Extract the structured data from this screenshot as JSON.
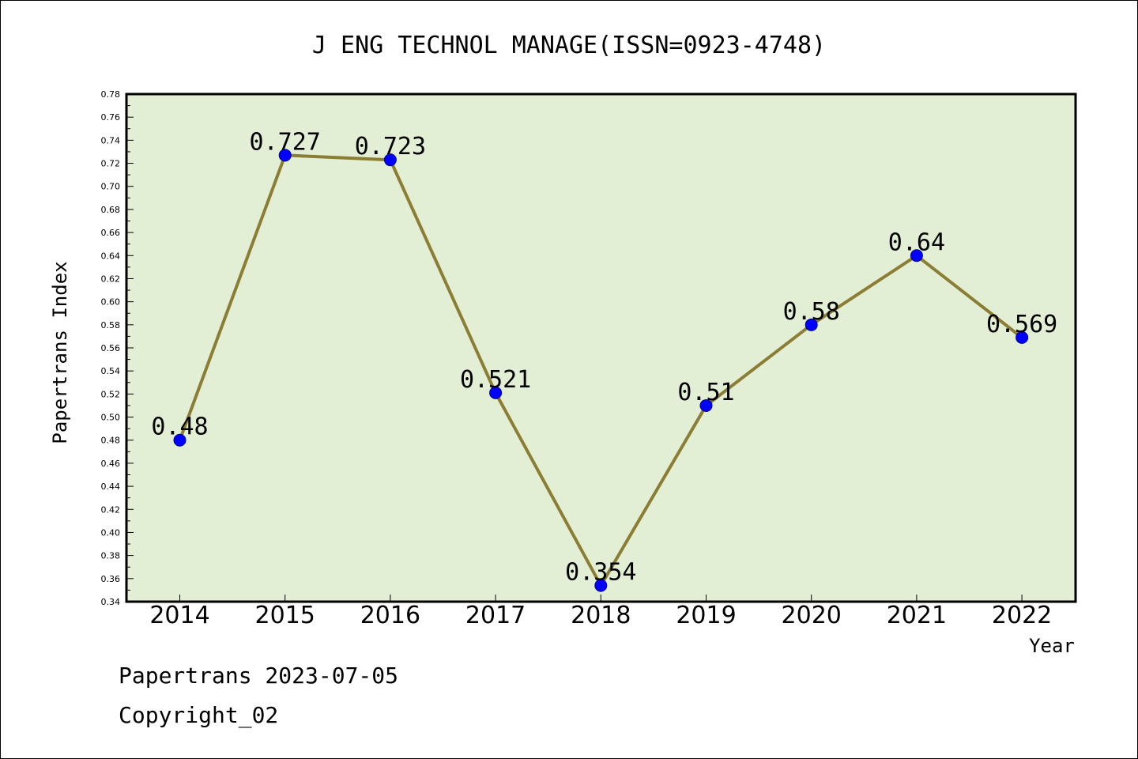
{
  "chart_data": {
    "type": "line",
    "title": "J ENG TECHNOL MANAGE(ISSN=0923-4748)",
    "xlabel": "Year",
    "ylabel": "Papertrans Index",
    "categories": [
      "2014",
      "2015",
      "2016",
      "2017",
      "2018",
      "2019",
      "2020",
      "2021",
      "2022"
    ],
    "series": [
      {
        "values": [
          0.48,
          0.727,
          0.723,
          0.521,
          0.354,
          0.51,
          0.58,
          0.64,
          0.569
        ],
        "labels": [
          "0.48",
          "0.727",
          "0.723",
          "0.521",
          "0.354",
          "0.51",
          "0.58",
          "0.64",
          "0.569"
        ]
      }
    ],
    "ylim": [
      0.34,
      0.78
    ],
    "yticks": [
      "0.34",
      "0.36",
      "0.38",
      "0.40",
      "0.42",
      "0.44",
      "0.46",
      "0.48",
      "0.50",
      "0.52",
      "0.54",
      "0.56",
      "0.58",
      "0.60",
      "0.62",
      "0.64",
      "0.66",
      "0.68",
      "0.70",
      "0.72",
      "0.74",
      "0.76",
      "0.78"
    ],
    "grid": false,
    "colors": {
      "plot_bg": "#e2efd5",
      "line": "#8b7d33",
      "marker": "#0000ff"
    }
  },
  "footer": {
    "line1": "Papertrans 2023-07-05",
    "line2": "Copyright_02"
  }
}
